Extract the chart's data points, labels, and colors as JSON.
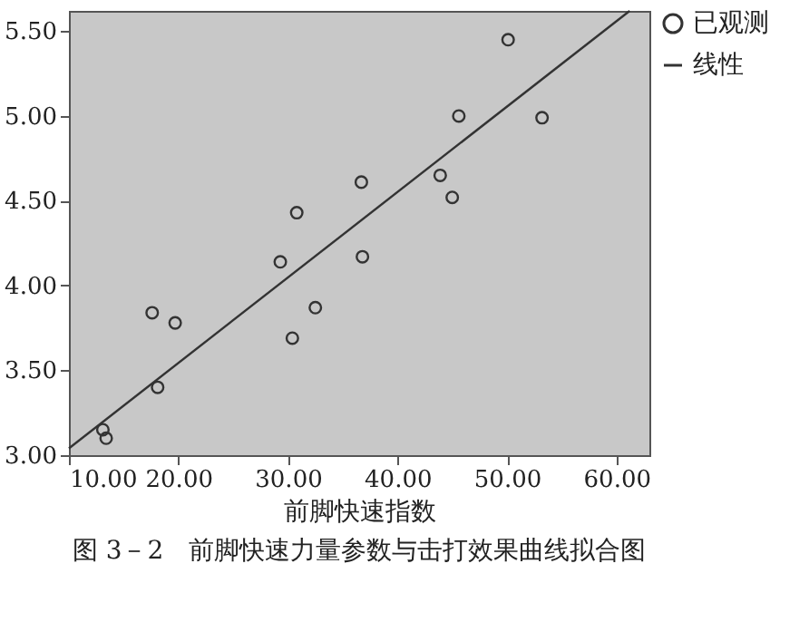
{
  "chart_data": {
    "type": "scatter",
    "title": "图 3－2　前脚快速力量参数与击打效果曲线拟合图",
    "xlabel": "前脚快速指数",
    "xlim": [
      10,
      63
    ],
    "ylim": [
      3.0,
      5.62
    ],
    "xticks": [
      {
        "value": 10,
        "label": "10.00"
      },
      {
        "value": 20,
        "label": "20.00"
      },
      {
        "value": 30,
        "label": "30.00"
      },
      {
        "value": 40,
        "label": "40.00"
      },
      {
        "value": 50,
        "label": "50.00"
      },
      {
        "value": 60,
        "label": "60.00"
      }
    ],
    "yticks": [
      {
        "value": 3.0,
        "label": "3.00"
      },
      {
        "value": 3.5,
        "label": "3.50"
      },
      {
        "value": 4.0,
        "label": "4.00"
      },
      {
        "value": 4.5,
        "label": "4.50"
      },
      {
        "value": 5.0,
        "label": "5.00"
      },
      {
        "value": 5.5,
        "label": "5.50"
      }
    ],
    "grid": false,
    "legend": "top right",
    "series": [
      {
        "name": "已观测",
        "marker": "circle",
        "color": "#333333",
        "x": [
          13.1,
          13.4,
          17.6,
          19.7,
          18.1,
          29.3,
          30.8,
          30.4,
          32.5,
          36.7,
          36.8,
          43.9,
          45.0,
          45.6,
          50.1,
          53.2
        ],
        "values": [
          3.15,
          3.1,
          3.84,
          3.78,
          3.4,
          4.14,
          4.43,
          3.69,
          3.87,
          4.61,
          4.17,
          4.65,
          4.52,
          5.0,
          5.45,
          4.99
        ]
      },
      {
        "name": "线性",
        "type": "line",
        "line_style": "solid",
        "color": "#333333",
        "x": [
          10,
          61.2
        ],
        "values": [
          3.04,
          5.62
        ]
      }
    ]
  }
}
